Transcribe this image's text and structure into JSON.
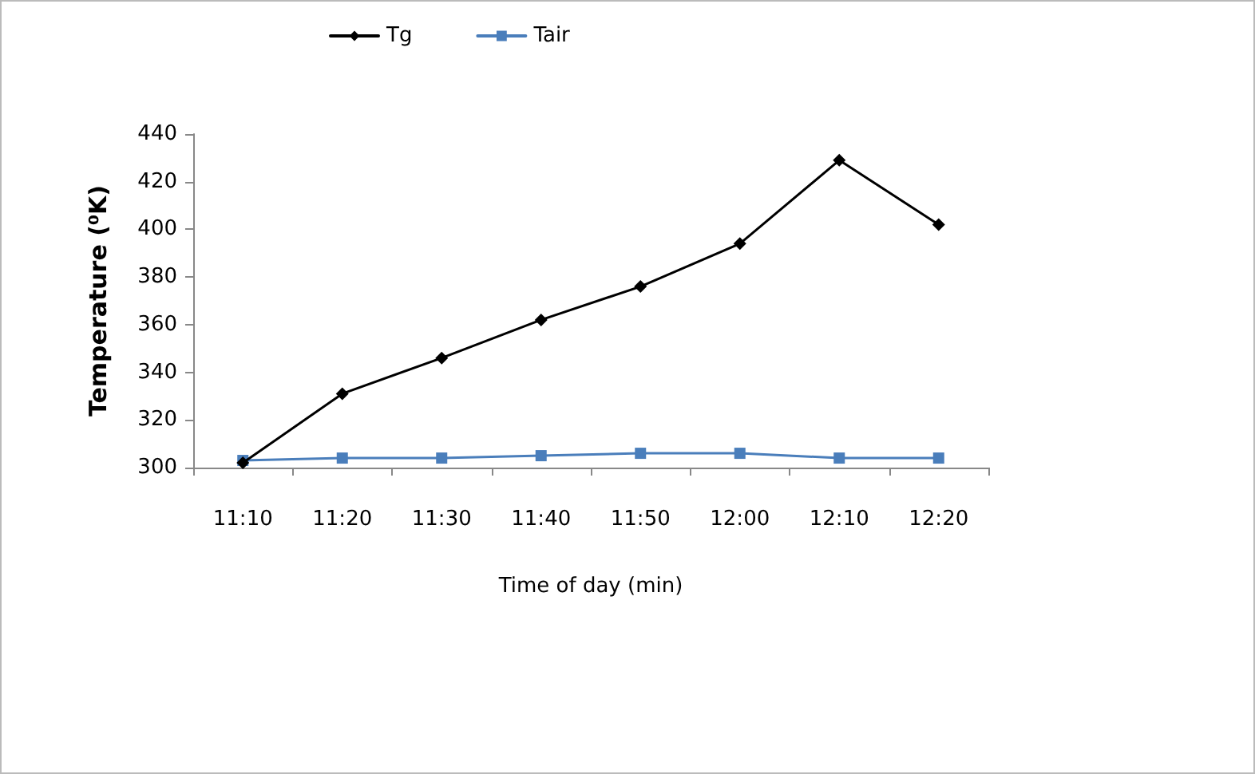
{
  "chart_data": {
    "type": "line",
    "xlabel": "Time of day (min)",
    "ylabel": "Temperature (⁰K)",
    "categories": [
      "11:10",
      "11:20",
      "11:30",
      "11:40",
      "11:50",
      "12:00",
      "12:10",
      "12:20"
    ],
    "series": [
      {
        "name": "Tg",
        "color": "#000000",
        "marker": "diamond",
        "values": [
          302,
          331,
          346,
          362,
          376,
          394,
          429,
          402
        ]
      },
      {
        "name": "Tair",
        "color": "#4a7ebb",
        "marker": "square",
        "values": [
          303,
          304,
          304,
          305,
          306,
          306,
          304,
          304
        ]
      }
    ],
    "ylim": [
      300,
      440
    ],
    "yticks": [
      300,
      320,
      340,
      360,
      380,
      400,
      420,
      440
    ],
    "grid": false,
    "legend": "top"
  }
}
